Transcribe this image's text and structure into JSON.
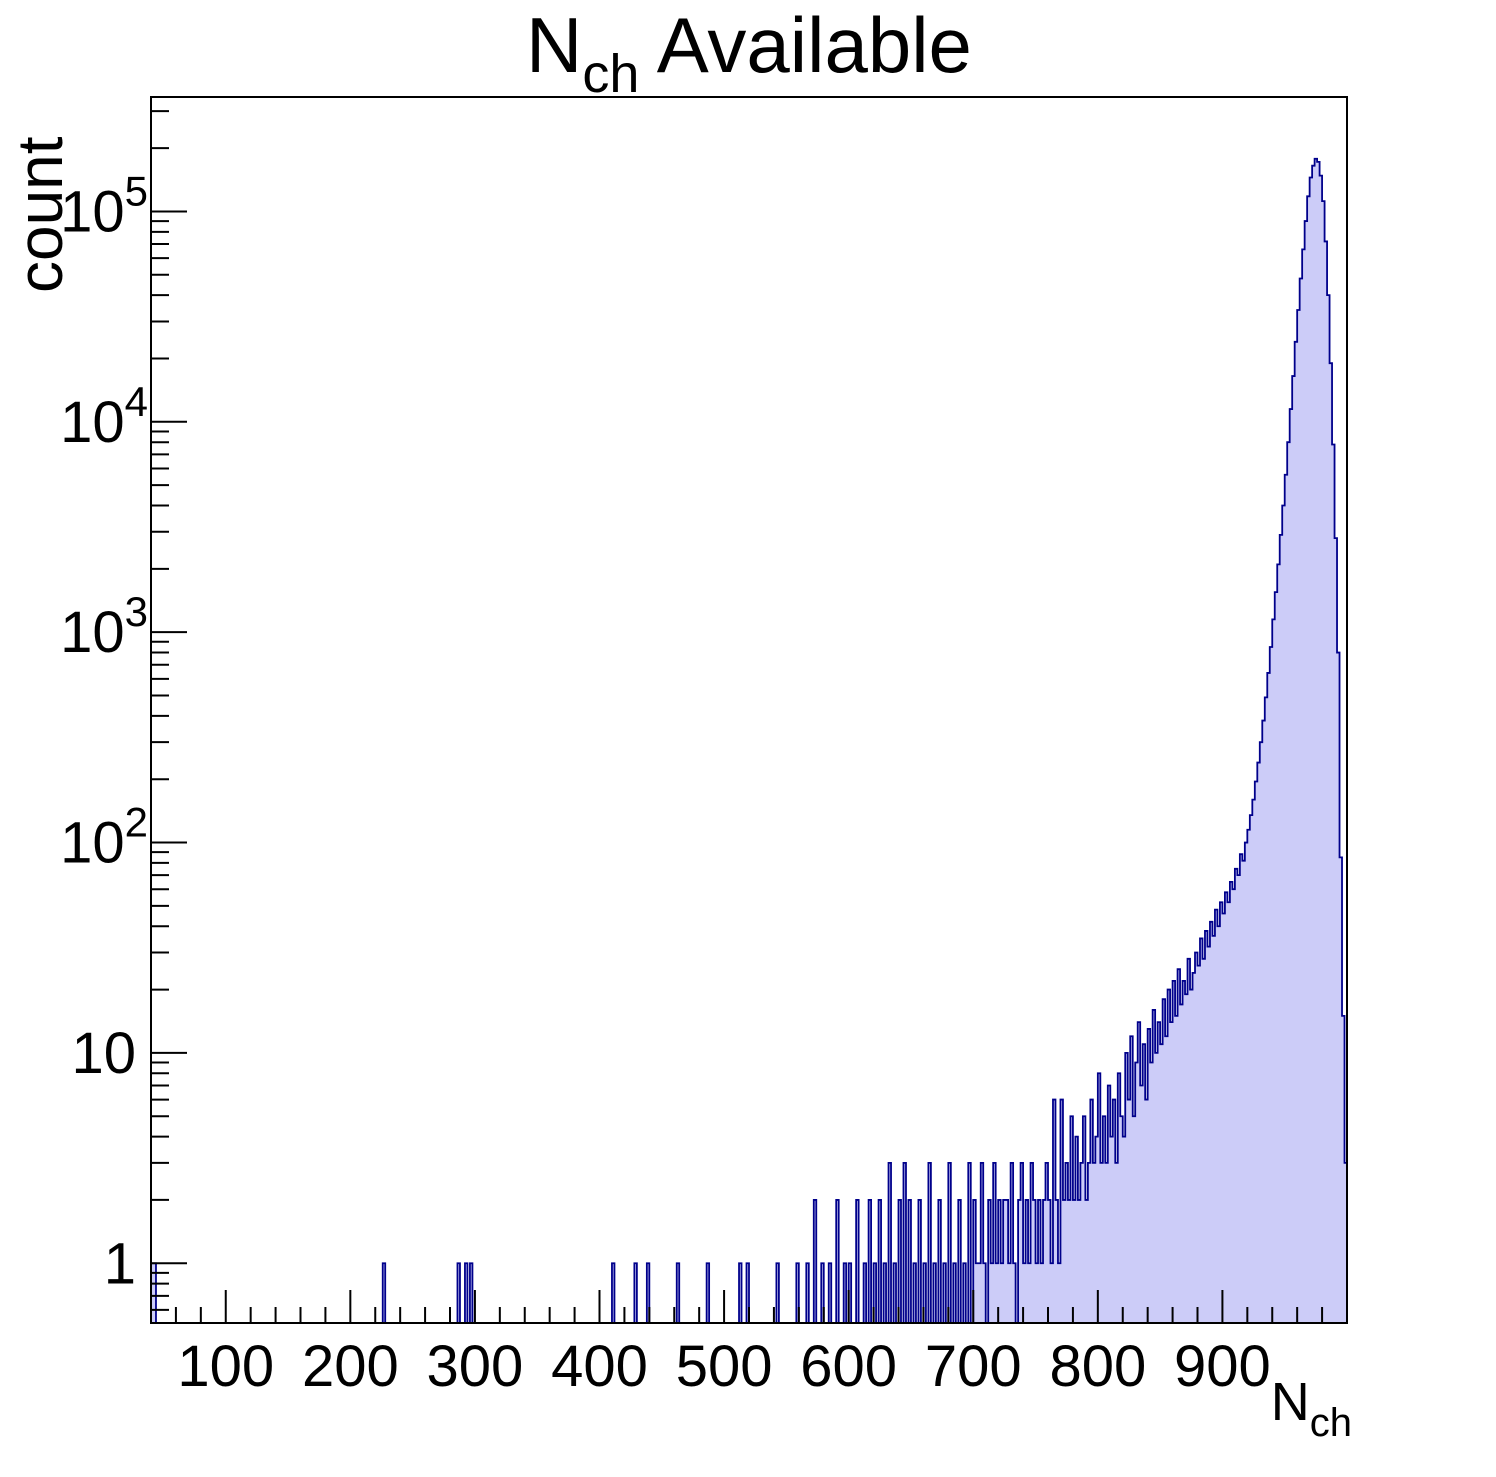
{
  "title": {
    "main": "N",
    "sub": "ch",
    "rest": " Available"
  },
  "y_axis": {
    "title": "count",
    "tick_labels": [
      {
        "value": 1,
        "text": "1"
      },
      {
        "value": 10,
        "text": "10"
      },
      {
        "value": 100,
        "text": "10",
        "exp": "2"
      },
      {
        "value": 1000,
        "text": "10",
        "exp": "3"
      },
      {
        "value": 10000,
        "text": "10",
        "exp": "4"
      },
      {
        "value": 100000,
        "text": "10",
        "exp": "5"
      }
    ]
  },
  "x_axis": {
    "title_main": "N",
    "title_sub": "ch",
    "tick_labels": [
      {
        "value": 100,
        "text": "100"
      },
      {
        "value": 200,
        "text": "200"
      },
      {
        "value": 300,
        "text": "300"
      },
      {
        "value": 400,
        "text": "400"
      },
      {
        "value": 500,
        "text": "500"
      },
      {
        "value": 600,
        "text": "600"
      },
      {
        "value": 700,
        "text": "700"
      },
      {
        "value": 800,
        "text": "800"
      },
      {
        "value": 900,
        "text": "900"
      }
    ]
  },
  "chart_data": {
    "type": "bar",
    "subtype": "histogram-log-y",
    "title": "N_ch Available",
    "xlabel": "N_ch",
    "ylabel": "count",
    "xlim": [
      40,
      1000
    ],
    "ylim_log": [
      0.52,
      350000
    ],
    "x_minor_step": 20,
    "bin_width": 2,
    "grid": false,
    "legend": "none",
    "fill_color": "#ccccf8",
    "line_color": "#00008b",
    "frame_color": "#000000",
    "peak": {
      "x": 974,
      "count": 178000
    },
    "sparse_bins": [
      [
        40,
        1
      ],
      [
        42,
        1
      ],
      [
        226,
        1
      ],
      [
        286,
        1
      ],
      [
        292,
        1
      ],
      [
        296,
        1
      ],
      [
        410,
        1
      ],
      [
        428,
        1
      ],
      [
        438,
        1
      ],
      [
        462,
        1
      ],
      [
        486,
        1
      ],
      [
        512,
        1
      ],
      [
        518,
        1
      ],
      [
        542,
        1
      ],
      [
        558,
        1
      ],
      [
        566,
        1
      ],
      [
        572,
        2
      ],
      [
        578,
        1
      ],
      [
        584,
        1
      ],
      [
        590,
        2
      ],
      [
        596,
        1
      ],
      [
        600,
        1
      ],
      [
        606,
        2
      ],
      [
        612,
        1
      ],
      [
        616,
        2
      ],
      [
        620,
        1
      ],
      [
        624,
        2
      ],
      [
        628,
        1
      ],
      [
        632,
        3
      ],
      [
        636,
        1
      ],
      [
        640,
        2
      ],
      [
        644,
        3
      ],
      [
        648,
        2
      ],
      [
        652,
        1
      ],
      [
        656,
        2
      ],
      [
        660,
        1
      ],
      [
        664,
        3
      ],
      [
        668,
        1
      ],
      [
        672,
        2
      ],
      [
        676,
        1
      ],
      [
        680,
        3
      ],
      [
        684,
        1
      ],
      [
        688,
        2
      ],
      [
        692,
        1
      ],
      [
        696,
        3
      ]
    ],
    "dense_bins": {
      "start": 700,
      "step": 2,
      "counts": [
        2,
        1,
        1,
        3,
        1,
        0,
        2,
        1,
        3,
        1,
        2,
        1,
        2,
        2,
        1,
        3,
        1,
        0,
        2,
        3,
        1,
        2,
        1,
        3,
        2,
        1,
        2,
        1,
        2,
        3,
        2,
        1,
        6,
        2,
        1,
        6,
        2,
        3,
        2,
        5,
        2,
        4,
        2,
        3,
        5,
        2,
        3,
        6,
        3,
        4,
        8,
        3,
        5,
        3,
        7,
        4,
        6,
        3,
        8,
        5,
        4,
        10,
        6,
        12,
        5,
        9,
        14,
        7,
        11,
        6,
        13,
        9,
        16,
        10,
        14,
        11,
        18,
        12,
        20,
        14,
        22,
        15,
        25,
        17,
        22,
        19,
        28,
        20,
        24,
        30,
        26,
        35,
        28,
        38,
        32,
        42,
        36,
        48,
        40,
        52,
        46,
        58,
        52,
        65,
        60,
        75,
        70,
        88,
        82,
        100,
        115,
        135,
        160,
        195,
        240,
        300,
        380,
        490,
        640,
        850,
        1150,
        1550,
        2100,
        2900,
        4000,
        5600,
        8000,
        11500,
        16500,
        24000,
        34000,
        48000,
        66000,
        90000,
        118000,
        145000,
        165000,
        178000,
        172000,
        148000,
        112000,
        72000,
        40000,
        19000,
        7800,
        2800,
        800,
        85,
        15,
        3
      ]
    }
  }
}
